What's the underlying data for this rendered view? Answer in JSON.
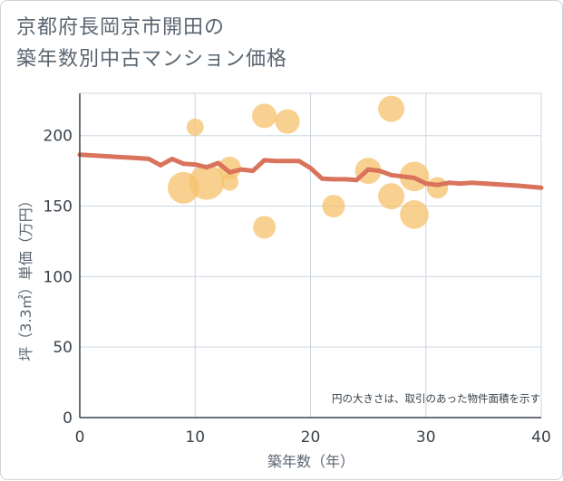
{
  "title_line1": "京都府長岡京市開田の",
  "title_line2": "築年数別中古マンション価格",
  "chart_data": {
    "type": "scatter",
    "xlabel": "築年数（年）",
    "ylabel": "坪（3.3㎡）単価（万円）",
    "xlim": [
      0,
      40
    ],
    "ylim": [
      0,
      230
    ],
    "xticks": [
      "0",
      "10",
      "20",
      "30",
      "40"
    ],
    "xtick_values": [
      0,
      10,
      20,
      30,
      40
    ],
    "yticks": [
      "0",
      "50",
      "100",
      "150",
      "200"
    ],
    "ytick_values": [
      0,
      50,
      100,
      150,
      200
    ],
    "grid": true,
    "note": "円の大きさは、取引のあった物件面積を示す",
    "colors": {
      "bubble": "#f5c16b",
      "line": "#d9735c",
      "grid": "#cdd6e0",
      "axis": "#39424b"
    },
    "bubbles": [
      {
        "x": 9,
        "y": 163,
        "size": 3
      },
      {
        "x": 10,
        "y": 206,
        "size": 0.5
      },
      {
        "x": 11,
        "y": 167,
        "size": 4
      },
      {
        "x": 13,
        "y": 177,
        "size": 1.2
      },
      {
        "x": 13,
        "y": 167,
        "size": 0.5
      },
      {
        "x": 16,
        "y": 214,
        "size": 1.5
      },
      {
        "x": 16,
        "y": 135,
        "size": 1.2
      },
      {
        "x": 18,
        "y": 210,
        "size": 1.5
      },
      {
        "x": 22,
        "y": 150,
        "size": 1.2
      },
      {
        "x": 25,
        "y": 175,
        "size": 1.8
      },
      {
        "x": 27,
        "y": 219,
        "size": 1.8
      },
      {
        "x": 27,
        "y": 157,
        "size": 1.8
      },
      {
        "x": 29,
        "y": 171,
        "size": 2.5
      },
      {
        "x": 29,
        "y": 144,
        "size": 2.3
      },
      {
        "x": 31,
        "y": 163,
        "size": 1
      }
    ],
    "trend": {
      "x": [
        0,
        2,
        4,
        6,
        7,
        8,
        9,
        10,
        11,
        12,
        13,
        14,
        15,
        16,
        17,
        18,
        19,
        20,
        21,
        22,
        23,
        24,
        25,
        26,
        27,
        28,
        29,
        30,
        31,
        32,
        33,
        34,
        36,
        38,
        40
      ],
      "y": [
        186.5,
        185.5,
        184.5,
        183.5,
        179,
        183.5,
        180,
        179.5,
        177.5,
        180.5,
        174,
        176,
        175,
        182.5,
        182,
        182,
        182,
        177,
        169.5,
        169,
        169,
        168.5,
        176,
        175,
        172,
        171,
        170,
        166,
        165,
        166.5,
        166,
        166.5,
        165.5,
        164.5,
        163
      ]
    }
  }
}
